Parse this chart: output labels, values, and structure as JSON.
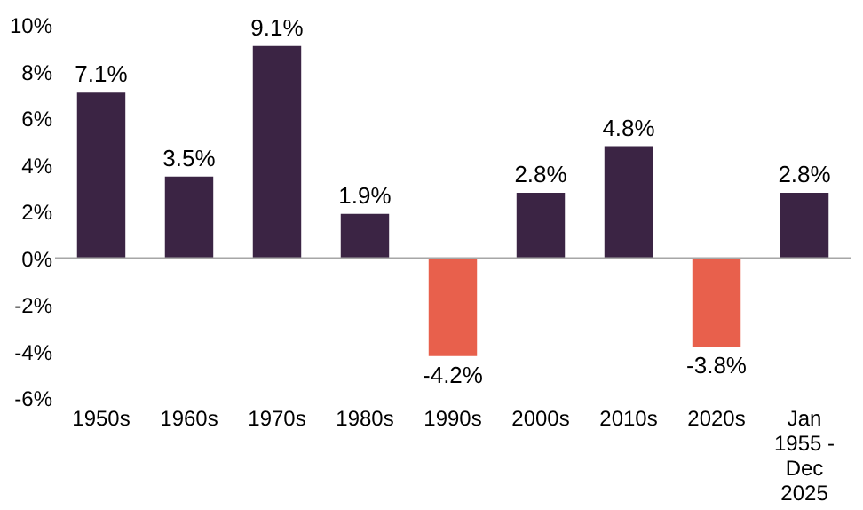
{
  "chart_data": {
    "type": "bar",
    "categories": [
      "1950s",
      "1960s",
      "1970s",
      "1980s",
      "1990s",
      "2000s",
      "2010s",
      "2020s",
      "Jan 1955 - Dec 2025"
    ],
    "values": [
      7.1,
      3.5,
      9.1,
      1.9,
      -4.2,
      2.8,
      4.8,
      -3.8,
      2.8
    ],
    "colors": [
      "#3b2444",
      "#3b2444",
      "#3b2444",
      "#3b2444",
      "#e8604c",
      "#3b2444",
      "#3b2444",
      "#e8604c",
      "#3b2444"
    ],
    "value_labels": [
      "7.1%",
      "3.5%",
      "9.1%",
      "1.9%",
      "-4.2%",
      "2.8%",
      "4.8%",
      "-3.8%",
      "2.8%"
    ],
    "ylim": [
      -6,
      10
    ],
    "yticks": [
      {
        "value": -6,
        "label": "-6%"
      },
      {
        "value": -4,
        "label": "-4%"
      },
      {
        "value": -2,
        "label": "-2%"
      },
      {
        "value": 0,
        "label": "0%"
      },
      {
        "value": 2,
        "label": "2%"
      },
      {
        "value": 4,
        "label": "4%"
      },
      {
        "value": 6,
        "label": "6%"
      },
      {
        "value": 8,
        "label": "8%"
      },
      {
        "value": 10,
        "label": "10%"
      }
    ],
    "ref_lines": [
      {
        "axis": "y",
        "value": 0,
        "color": "#a6a6a6"
      }
    ],
    "grid": false
  }
}
